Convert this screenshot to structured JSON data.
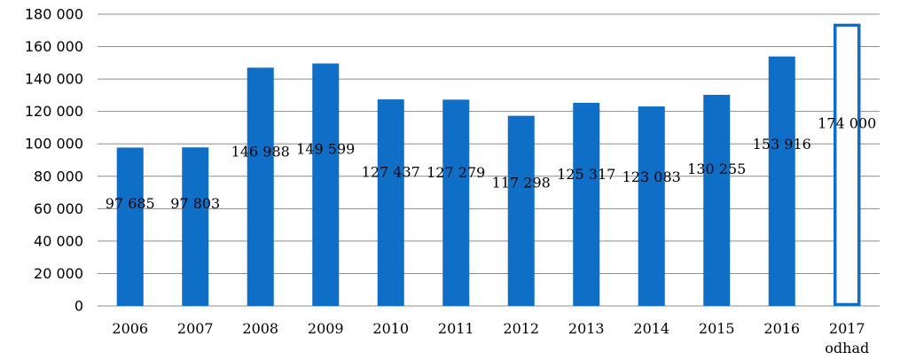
{
  "chart_data": {
    "type": "bar",
    "categories": [
      "2006",
      "2007",
      "2008",
      "2009",
      "2010",
      "2011",
      "2012",
      "2013",
      "2014",
      "2015",
      "2016",
      "2017"
    ],
    "category_sublabels": [
      "",
      "",
      "",
      "",
      "",
      "",
      "",
      "",
      "",
      "",
      "",
      "odhad"
    ],
    "values": [
      97685,
      97803,
      146988,
      149599,
      127437,
      127279,
      117298,
      125317,
      123083,
      130255,
      153916,
      174000
    ],
    "value_labels": [
      "97 685",
      "97 803",
      "146 988",
      "149 599",
      "127 437",
      "127 279",
      "117 298",
      "125 317",
      "123 083",
      "130 255",
      "153 916",
      "174 000"
    ],
    "ylim": [
      0,
      180000
    ],
    "y_ticks": [
      0,
      20000,
      40000,
      60000,
      80000,
      100000,
      120000,
      140000,
      160000,
      180000
    ],
    "y_tick_labels": [
      "0",
      "20 000",
      "40 000",
      "60 000",
      "80 000",
      "100 000",
      "120 000",
      "140 000",
      "160 000",
      "180 000"
    ],
    "estimate_index": 11,
    "grid": true,
    "legend": "none",
    "title": "",
    "xlabel": "",
    "ylabel": "",
    "colors": {
      "bar": "#0f6fc6",
      "grid": "#8c8c8c",
      "estimate_fill": "#ffffff"
    }
  }
}
